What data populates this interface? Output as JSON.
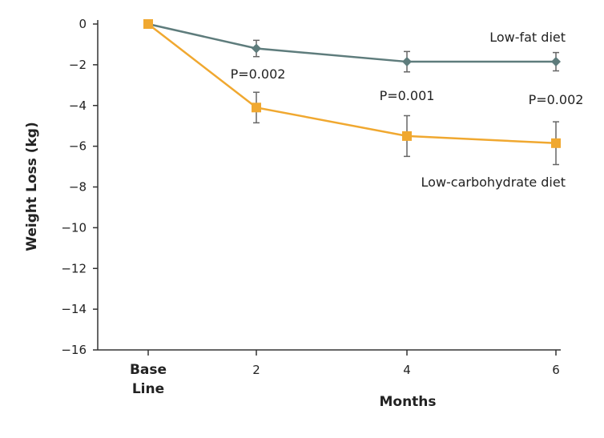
{
  "chart_data": {
    "type": "line",
    "title": "",
    "xlabel": "Months",
    "ylabel": "Weight Loss (kg)",
    "categories": [
      "Base Line",
      "2",
      "4",
      "6"
    ],
    "category_lines": [
      [
        "Base",
        "Line"
      ],
      [
        "2"
      ],
      [
        "4"
      ],
      [
        "6"
      ]
    ],
    "yticks": [
      0,
      -2,
      -4,
      -6,
      -8,
      -10,
      -12,
      -14,
      -16
    ],
    "ylim": [
      -16,
      0
    ],
    "grid": false,
    "series": [
      {
        "name": "Low-fat diet",
        "color": "#5e7c7c",
        "marker": "diamond",
        "values": [
          0,
          -1.2,
          -1.85,
          -1.85
        ],
        "error": [
          0,
          0.4,
          0.5,
          0.45
        ]
      },
      {
        "name": "Low-carbohydrate diet",
        "color": "#f0a830",
        "marker": "square",
        "values": [
          0,
          -4.1,
          -5.5,
          -5.85
        ],
        "error": [
          0,
          0.75,
          1.0,
          1.05
        ]
      }
    ],
    "annotations": [
      "P=0.002",
      "P=0.001",
      "P=0.002"
    ]
  }
}
